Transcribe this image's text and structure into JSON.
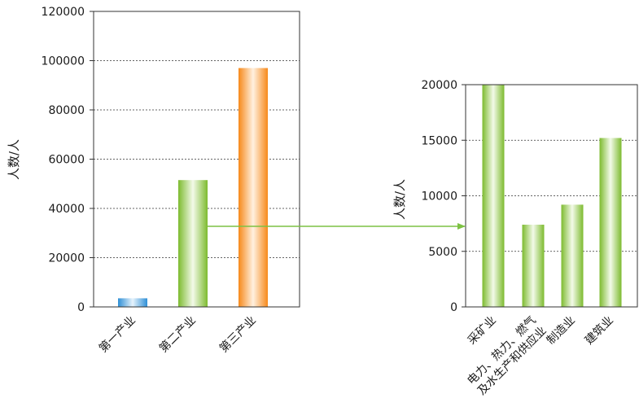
{
  "chart_data": [
    {
      "type": "bar",
      "title": "",
      "xlabel": "",
      "ylabel": "人数/人",
      "ylim": [
        0,
        120000
      ],
      "yticks": [
        "0",
        "20000",
        "40000",
        "60000",
        "80000",
        "100000",
        "120000"
      ],
      "grid": "horizontal dashed",
      "categories": [
        "第一产业",
        "第二产业",
        "第三产业"
      ],
      "values": [
        3500,
        51500,
        97000
      ],
      "bar_colors": [
        "#3a9ad9",
        "#8dc63f",
        "#f7941d"
      ]
    },
    {
      "type": "bar",
      "title": "",
      "xlabel": "",
      "ylabel": "人数/人",
      "ylim": [
        0,
        20000
      ],
      "yticks": [
        "0",
        "5000",
        "10000",
        "15000",
        "20000"
      ],
      "grid": "horizontal dashed",
      "categories": [
        "采矿业",
        "电力、热力、燃气及水生产和供应业",
        "制造业",
        "建筑业"
      ],
      "category_lines": [
        [
          "采矿业"
        ],
        [
          "电力、热力、燃气",
          "及水生产和供应业"
        ],
        [
          "制造业"
        ],
        [
          "建筑业"
        ]
      ],
      "values": [
        20000,
        7400,
        9200,
        15200
      ],
      "bar_colors": [
        "#8dc63f",
        "#8dc63f",
        "#8dc63f",
        "#8dc63f"
      ]
    }
  ],
  "connector": {
    "from": "第二产业",
    "to": "chart-2",
    "color": "#7dc243"
  }
}
